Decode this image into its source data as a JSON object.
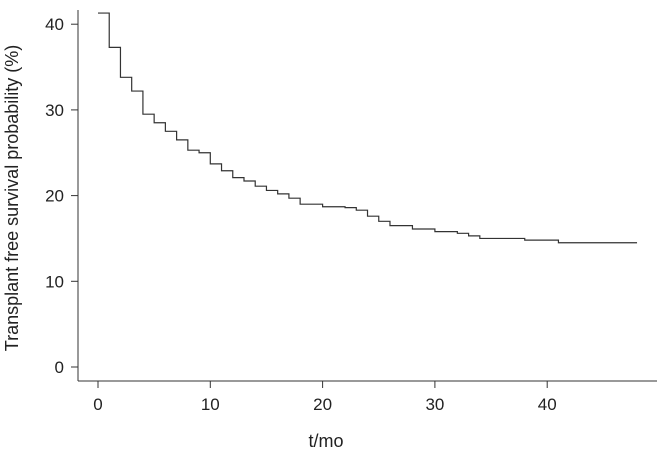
{
  "chart_data": {
    "type": "line",
    "style": "step",
    "title": "",
    "xlabel": "t/mo",
    "ylabel": "Transplant free survival probability (%)",
    "xlim": [
      0,
      48
    ],
    "ylim": [
      0,
      42
    ],
    "xticks": [
      0,
      10,
      20,
      30,
      40
    ],
    "yticks": [
      0,
      10,
      20,
      30,
      40
    ],
    "grid": false,
    "series": [
      {
        "color": "#333333",
        "x": [
          0,
          1,
          2,
          3,
          4,
          5,
          6,
          7,
          8,
          9,
          10,
          11,
          12,
          13,
          14,
          15,
          16,
          17,
          18,
          20,
          22,
          23,
          24,
          25,
          26,
          28,
          30,
          32,
          33,
          34,
          38,
          41,
          48
        ],
        "y": [
          41.3,
          37.3,
          33.8,
          32.2,
          29.5,
          28.5,
          27.5,
          26.5,
          25.3,
          25.0,
          23.7,
          22.9,
          22.1,
          21.7,
          21.1,
          20.6,
          20.2,
          19.7,
          19.0,
          18.7,
          18.6,
          18.3,
          17.6,
          17.0,
          16.5,
          16.1,
          15.8,
          15.6,
          15.3,
          15.0,
          14.8,
          14.5,
          14.5
        ]
      }
    ]
  }
}
